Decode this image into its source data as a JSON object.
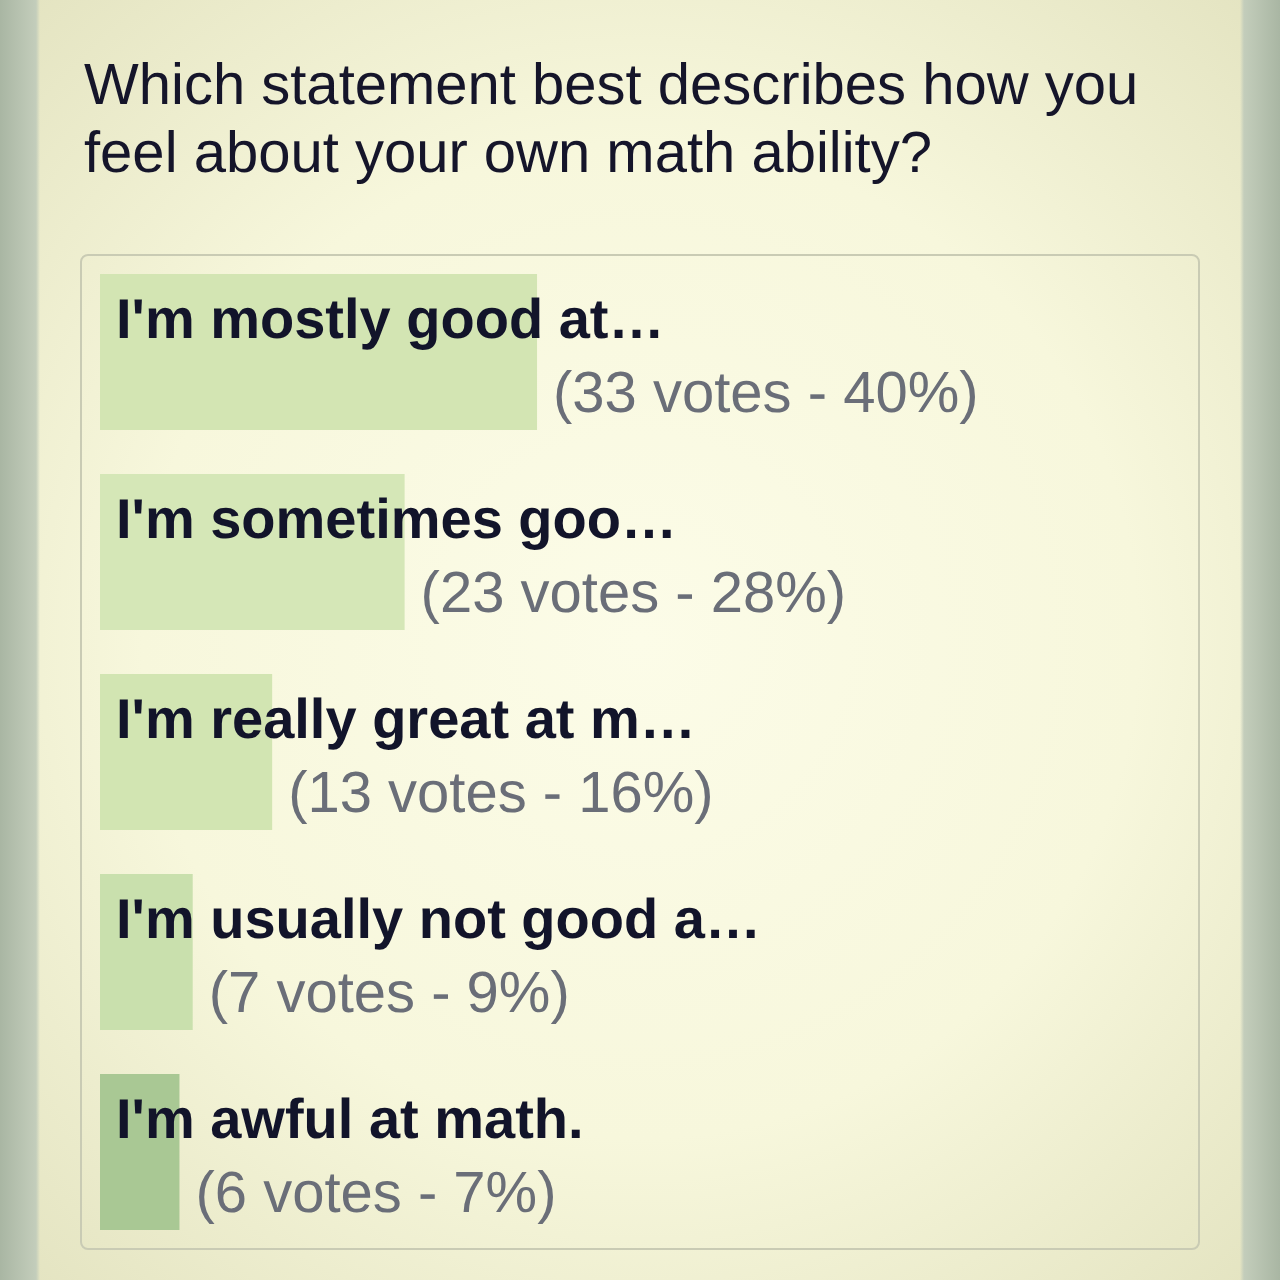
{
  "chart_data": {
    "type": "bar",
    "orientation": "horizontal",
    "title": "Which statement best describes how you feel about your own math ability?",
    "categories": [
      "I'm mostly good at…",
      "I'm sometimes goo…",
      "I'm really great at m…",
      "I'm usually not good a…",
      "I'm awful at math."
    ],
    "values": [
      33,
      23,
      13,
      7,
      6
    ],
    "value_labels": [
      "(33 votes - 40%)",
      "(23 votes - 28%)",
      "(13 votes - 16%)",
      "(7 votes - 9%)",
      "(6 votes - 7%)"
    ],
    "colors": [
      "#d3e5b3",
      "#d5e7b7",
      "#d2e5b2",
      "#c9e0ad",
      "#a9c894"
    ],
    "tick_labels": false
  }
}
